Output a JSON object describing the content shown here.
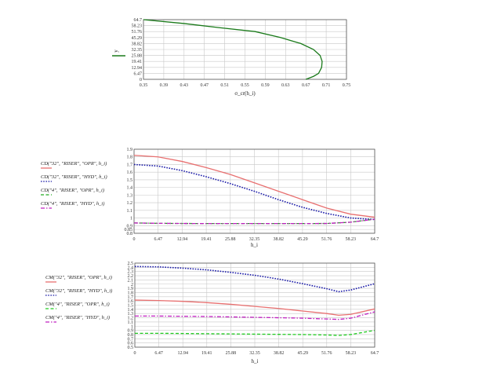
{
  "chart_data": [
    {
      "type": "line",
      "xlabel": "σ_cr(h_i)",
      "ylabel": "y",
      "xlim": [
        0.35,
        0.75
      ],
      "ylim": [
        0,
        64.7
      ],
      "x_ticks": [
        "0.35",
        "0.39",
        "0.43",
        "0.47",
        "0.51",
        "0.55",
        "0.59",
        "0.63",
        "0.67",
        "0.71",
        "0.75"
      ],
      "y_ticks": [
        "0",
        "6.47",
        "12.94",
        "19.41",
        "25.88",
        "32.35",
        "38.82",
        "45.29",
        "51.76",
        "58.23",
        "64.7"
      ],
      "grid": true,
      "series": [
        {
          "name": "y",
          "color": "#1a7a1a",
          "dash": "solid",
          "points": [
            [
              0.67,
              0.0
            ],
            [
              0.685,
              3.2
            ],
            [
              0.695,
              6.47
            ],
            [
              0.701,
              12.94
            ],
            [
              0.702,
              19.41
            ],
            [
              0.698,
              25.88
            ],
            [
              0.685,
              32.35
            ],
            [
              0.66,
              38.82
            ],
            [
              0.62,
              45.29
            ],
            [
              0.57,
              51.76
            ],
            [
              0.5,
              56.0
            ],
            [
              0.43,
              60.5
            ],
            [
              0.35,
              64.7
            ]
          ]
        }
      ]
    },
    {
      "type": "line",
      "xlabel": "h_i",
      "ylabel": "",
      "xlim": [
        0,
        64.7
      ],
      "ylim": [
        0.8,
        1.9
      ],
      "x_ticks": [
        "0",
        "6.47",
        "12.94",
        "19.41",
        "25.88",
        "32.35",
        "38.82",
        "45.29",
        "51.76",
        "58.23",
        "64.7"
      ],
      "y_ticks": [
        "0.8",
        "0.85",
        "0.9",
        "1",
        "1.1",
        "1.2",
        "1.3",
        "1.4",
        "1.5",
        "1.6",
        "1.7",
        "1.8",
        "1.9"
      ],
      "y_tick_values": [
        0.8,
        0.85,
        0.9,
        1.0,
        1.1,
        1.2,
        1.3,
        1.4,
        1.5,
        1.6,
        1.7,
        1.8,
        1.9
      ],
      "grid": true,
      "series": [
        {
          "name": "CD(\"32\", \"RISER\", \"OPR\", h_i)",
          "color": "#e87070",
          "dash": "solid",
          "points": [
            [
              0,
              1.82
            ],
            [
              6.47,
              1.8
            ],
            [
              12.94,
              1.74
            ],
            [
              19.41,
              1.66
            ],
            [
              25.88,
              1.57
            ],
            [
              32.35,
              1.46
            ],
            [
              38.82,
              1.35
            ],
            [
              45.29,
              1.24
            ],
            [
              51.76,
              1.13
            ],
            [
              58.23,
              1.05
            ],
            [
              64.7,
              1.01
            ]
          ]
        },
        {
          "name": "CD(\"32\", \"RISER\", \"HYD\", h_i)",
          "color": "#1a1aa8",
          "dash": "dot",
          "points": [
            [
              0,
              1.7
            ],
            [
              6.47,
              1.68
            ],
            [
              12.94,
              1.62
            ],
            [
              19.41,
              1.54
            ],
            [
              25.88,
              1.45
            ],
            [
              32.35,
              1.35
            ],
            [
              38.82,
              1.24
            ],
            [
              45.29,
              1.14
            ],
            [
              51.76,
              1.06
            ],
            [
              58.23,
              1.0
            ],
            [
              64.7,
              0.98
            ]
          ]
        },
        {
          "name": "CD(\"4\", \"RISER\", \"OPR\", h_i)",
          "color": "#22aa22",
          "dash": "dash",
          "points": [
            [
              0,
              0.935
            ],
            [
              6.47,
              0.93
            ],
            [
              12.94,
              0.928
            ],
            [
              19.41,
              0.927
            ],
            [
              25.88,
              0.927
            ],
            [
              32.35,
              0.927
            ],
            [
              38.82,
              0.927
            ],
            [
              45.29,
              0.927
            ],
            [
              51.76,
              0.928
            ],
            [
              58.23,
              0.945
            ],
            [
              64.7,
              0.985
            ]
          ]
        },
        {
          "name": "CD(\"4\", \"RISER\", \"HYD\", h_i)",
          "color": "#c020c0",
          "dash": "dashdot",
          "points": [
            [
              0,
              0.935
            ],
            [
              6.47,
              0.93
            ],
            [
              12.94,
              0.928
            ],
            [
              19.41,
              0.927
            ],
            [
              25.88,
              0.927
            ],
            [
              32.35,
              0.927
            ],
            [
              38.82,
              0.927
            ],
            [
              45.29,
              0.927
            ],
            [
              51.76,
              0.928
            ],
            [
              58.23,
              0.945
            ],
            [
              64.7,
              0.985
            ]
          ]
        }
      ]
    },
    {
      "type": "line",
      "xlabel": "h_i",
      "ylabel": "",
      "xlim": [
        0,
        64.7
      ],
      "ylim": [
        0.5,
        2.5
      ],
      "x_ticks": [
        "0",
        "6.47",
        "12.94",
        "19.41",
        "25.88",
        "32.35",
        "38.82",
        "45.29",
        "51.76",
        "58.23",
        "64.7"
      ],
      "y_ticks": [
        "0.5",
        "0.6",
        "0.7",
        "0.8",
        "0.9",
        "1",
        "1.1",
        "1.2",
        "1.3",
        "1.4",
        "1.5",
        "1.6",
        "1.7",
        "1.8",
        "1.9",
        "2",
        "2.1",
        "2.2",
        "2.3",
        "2.4",
        "2.5"
      ],
      "grid": true,
      "series": [
        {
          "name": "CM(\"32\", \"RISER\", \"OPR\", h_i)",
          "color": "#e87070",
          "dash": "solid",
          "points": [
            [
              0,
              1.62
            ],
            [
              6.47,
              1.61
            ],
            [
              12.94,
              1.59
            ],
            [
              19.41,
              1.56
            ],
            [
              25.88,
              1.52
            ],
            [
              32.35,
              1.47
            ],
            [
              38.82,
              1.42
            ],
            [
              45.29,
              1.36
            ],
            [
              51.76,
              1.3
            ],
            [
              55.0,
              1.26
            ],
            [
              58.23,
              1.28
            ],
            [
              64.7,
              1.41
            ]
          ]
        },
        {
          "name": "CM(\"32\", \"RISER\", \"HYD\", h_i)",
          "color": "#1a1aa8",
          "dash": "dot",
          "points": [
            [
              0,
              2.42
            ],
            [
              6.47,
              2.41
            ],
            [
              12.94,
              2.38
            ],
            [
              19.41,
              2.34
            ],
            [
              25.88,
              2.28
            ],
            [
              32.35,
              2.21
            ],
            [
              38.82,
              2.12
            ],
            [
              45.29,
              2.01
            ],
            [
              51.76,
              1.89
            ],
            [
              55.0,
              1.82
            ],
            [
              58.23,
              1.86
            ],
            [
              64.7,
              2.01
            ]
          ]
        },
        {
          "name": "CM(\"4\", \"RISER\", \"OPR\", h_i)",
          "color": "#22cc22",
          "dash": "dash",
          "points": [
            [
              0,
              0.83
            ],
            [
              6.47,
              0.83
            ],
            [
              12.94,
              0.825
            ],
            [
              19.41,
              0.82
            ],
            [
              25.88,
              0.815
            ],
            [
              32.35,
              0.81
            ],
            [
              38.82,
              0.805
            ],
            [
              45.29,
              0.8
            ],
            [
              51.76,
              0.79
            ],
            [
              55.0,
              0.78
            ],
            [
              58.23,
              0.8
            ],
            [
              64.7,
              0.9
            ]
          ]
        },
        {
          "name": "CM(\"4\", \"RISER\", \"HYD\", h_i)",
          "color": "#c020c0",
          "dash": "dashdot",
          "points": [
            [
              0,
              1.24
            ],
            [
              6.47,
              1.24
            ],
            [
              12.94,
              1.235
            ],
            [
              19.41,
              1.23
            ],
            [
              25.88,
              1.22
            ],
            [
              32.35,
              1.21
            ],
            [
              38.82,
              1.2
            ],
            [
              45.29,
              1.19
            ],
            [
              51.76,
              1.17
            ],
            [
              55.0,
              1.16
            ],
            [
              58.23,
              1.19
            ],
            [
              64.7,
              1.34
            ]
          ]
        }
      ]
    }
  ]
}
